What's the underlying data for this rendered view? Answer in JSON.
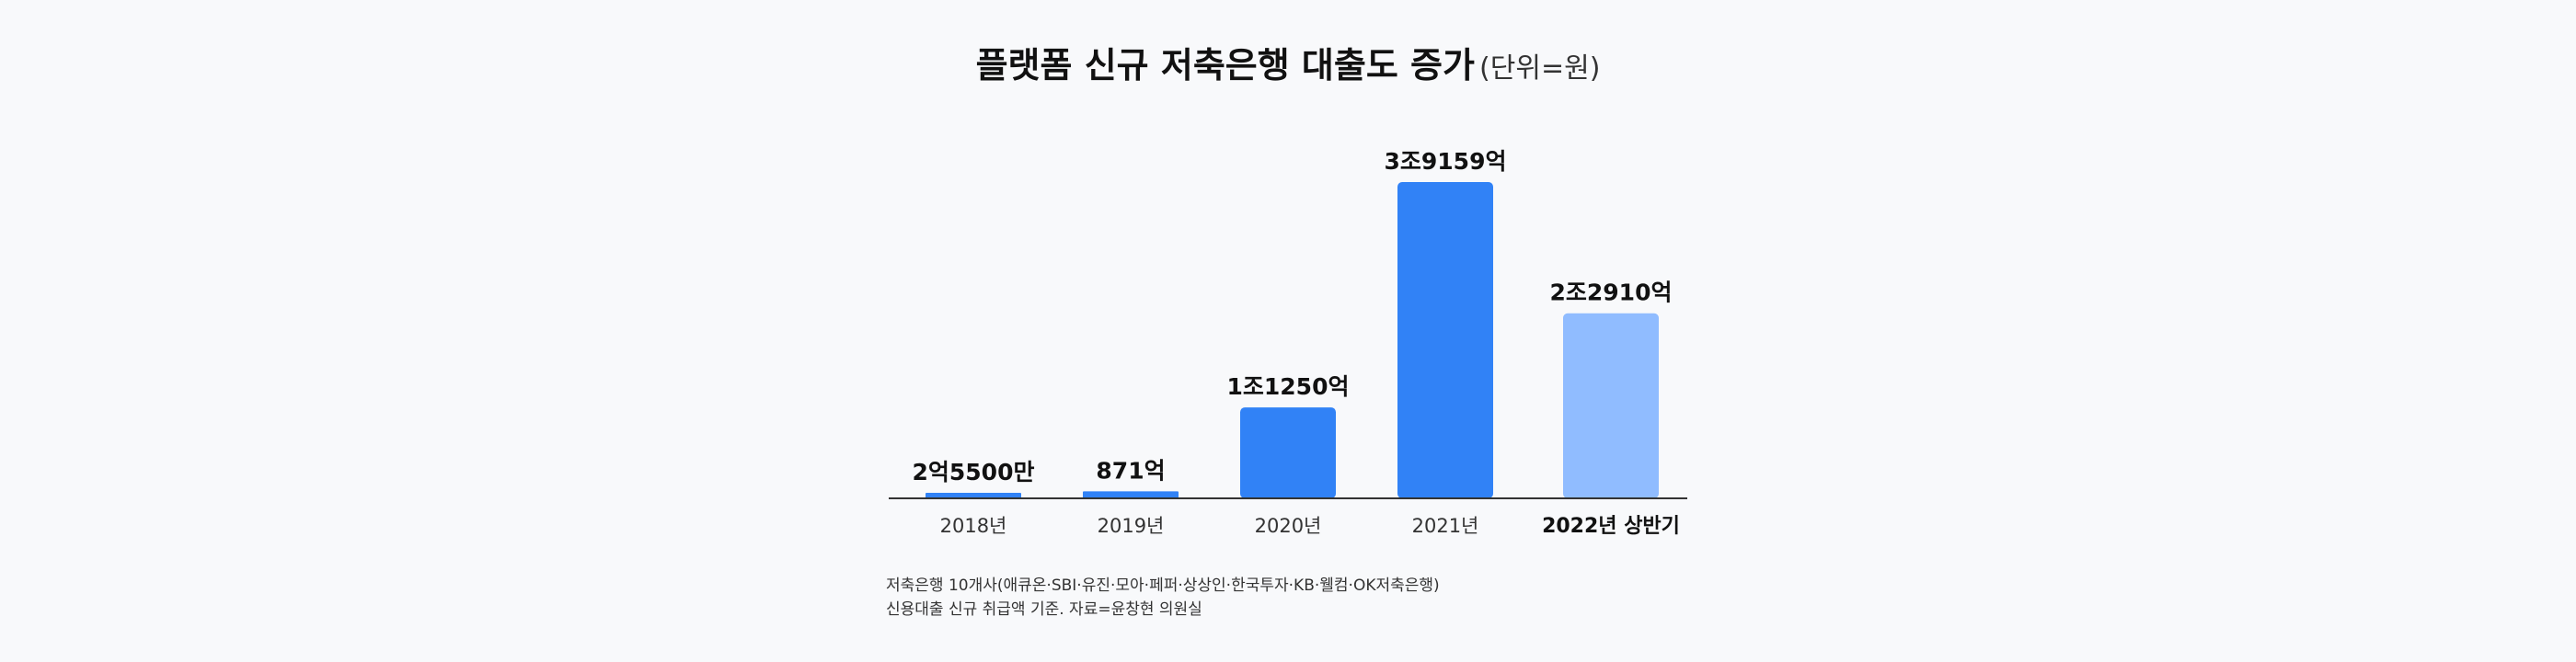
{
  "title": {
    "main": "플랫폼 신규 저축은행 대출도 증가",
    "unit": "(단위=원)"
  },
  "chart_data": {
    "type": "bar",
    "categories": [
      "2018년",
      "2019년",
      "2020년",
      "2021년",
      "2022년 상반기"
    ],
    "values": [
      0.00255,
      0.0871,
      1.125,
      3.9159,
      2.291
    ],
    "value_unit": "조원",
    "data_labels": [
      "2억5500만",
      "871억",
      "1조1250억",
      "3조9159억",
      "2조2910억"
    ],
    "highlight_category": "2022년 상반기",
    "colors": {
      "bar": "#3182f6",
      "bar_highlight": "#90bcff",
      "axis": "#333333"
    },
    "ylim": [
      0,
      3.9159
    ],
    "grid": false,
    "legend": "none"
  },
  "notes": [
    "저축은행 10개사(애큐온·SBI·유진·모아·페퍼·상상인·한국투자·KB·웰컴·OK저축은행)",
    "신용대출 신규 취급액 기준. 자료=윤창현 의원실"
  ]
}
